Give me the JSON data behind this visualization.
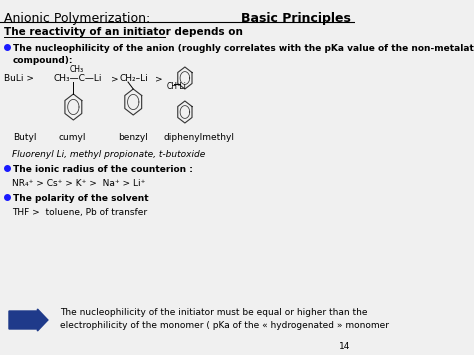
{
  "bg_color": "#f0f0f0",
  "header_left": "Anionic Polymerization:",
  "header_right": "Basic Principles",
  "title_underline": "The reactivity of an initiator depends on",
  "bullet1_bold": "The nucleophilicity of the anion (roughly correlates with the pKa value of the non-metalated\ncompound):",
  "label_butyl": "Butyl",
  "label_cumyl": "cumyl",
  "label_benzyl": "benzyl",
  "label_diphenylmethyl": "diphenylmethyl",
  "fluorenyl_line": "Fluorenyl Li, methyl propionate, t-butoxide",
  "bullet2_bold": "The ionic radius of the counterion :",
  "counterion_line": "NR₄⁺ > Cs⁺ > K⁺ >  Na⁺ > Li⁺",
  "bullet3_bold": "The polarity of the solvent",
  "solvent_line": "THF >  toluene, Pb of transfer",
  "arrow_text": "The nucleophilicity of the initiator must be equal or higher than the\nelectrophilicity of the monomer ( pKa of the « hydrogenated » monomer",
  "page_num": "14",
  "arrow_color": "#1f3a8a",
  "header_line_color": "#000000",
  "text_color": "#000000",
  "bullet_color": "#1a1aff",
  "chem_color": "#333333"
}
